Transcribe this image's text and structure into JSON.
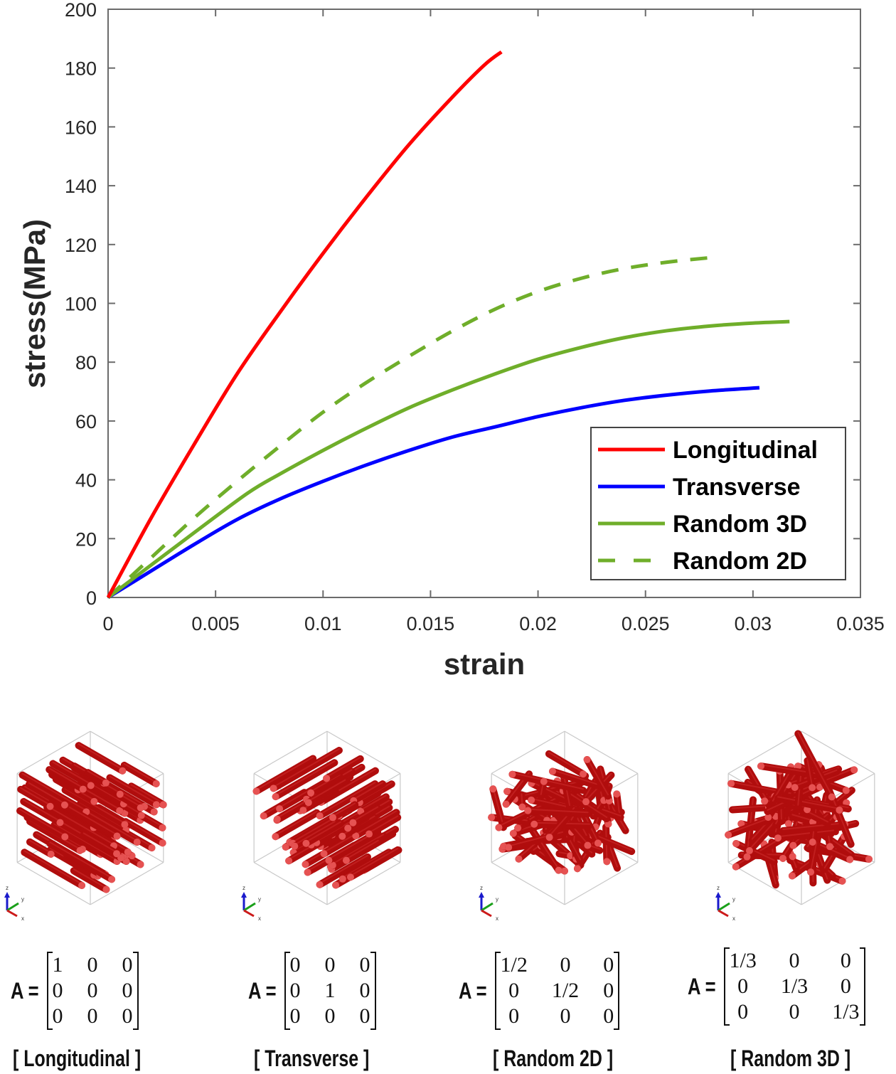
{
  "chart_data": {
    "type": "line",
    "title": "",
    "xlabel": "strain",
    "ylabel": "stress(MPa)",
    "xlim": [
      0,
      0.035
    ],
    "ylim": [
      0,
      200
    ],
    "xticks": [
      0,
      0.005,
      0.01,
      0.015,
      0.02,
      0.025,
      0.03,
      0.035
    ],
    "xtick_labels": [
      "0",
      "0.005",
      "0.01",
      "0.015",
      "0.02",
      "0.025",
      "0.03",
      "0.035"
    ],
    "yticks": [
      0,
      20,
      40,
      60,
      80,
      100,
      120,
      140,
      160,
      180,
      200
    ],
    "ytick_labels": [
      "0",
      "20",
      "40",
      "60",
      "80",
      "100",
      "120",
      "140",
      "160",
      "180",
      "200"
    ],
    "grid": false,
    "legend_position": "bottom-right",
    "series": [
      {
        "name": "Longitudinal",
        "color": "#ff0000",
        "style": "solid",
        "x": [
          0,
          0.002,
          0.004,
          0.006,
          0.008,
          0.01,
          0.012,
          0.014,
          0.016,
          0.0175,
          0.0183
        ],
        "y": [
          0,
          27,
          52,
          76,
          97,
          117,
          136,
          154,
          170,
          181,
          185.5
        ]
      },
      {
        "name": "Transverse",
        "color": "#0000ff",
        "style": "solid",
        "x": [
          0,
          0.002,
          0.004,
          0.006,
          0.008,
          0.01,
          0.012,
          0.014,
          0.016,
          0.018,
          0.02,
          0.022,
          0.024,
          0.026,
          0.028,
          0.0303
        ],
        "y": [
          0,
          9,
          18,
          26.5,
          33.5,
          39.5,
          45,
          50,
          54.5,
          58,
          61.5,
          64.5,
          67,
          68.8,
          70.2,
          71.3
        ]
      },
      {
        "name": "Random 3D",
        "color": "#6fae2a",
        "style": "solid",
        "x": [
          0,
          0.002,
          0.004,
          0.0065,
          0.008,
          0.01,
          0.012,
          0.014,
          0.016,
          0.018,
          0.02,
          0.022,
          0.024,
          0.026,
          0.028,
          0.03,
          0.0317
        ],
        "y": [
          0,
          11,
          22,
          35.5,
          42,
          50,
          57.5,
          64.5,
          70.5,
          76,
          81,
          85,
          88.3,
          90.7,
          92.3,
          93.3,
          93.8
        ]
      },
      {
        "name": "Random 2D",
        "color": "#6fae2a",
        "style": "dashed",
        "x": [
          0,
          0.002,
          0.004,
          0.006,
          0.008,
          0.01,
          0.012,
          0.014,
          0.016,
          0.018,
          0.02,
          0.022,
          0.024,
          0.026,
          0.0281
        ],
        "y": [
          0,
          13.5,
          27,
          39.5,
          51.5,
          63,
          73,
          82,
          90.5,
          98,
          104,
          108.5,
          111.8,
          114,
          115.6
        ]
      }
    ]
  },
  "panels": [
    {
      "caption": "[ Longitudinal ]",
      "matrix_label": "A =",
      "matrix": [
        [
          "1",
          "0",
          "0"
        ],
        [
          "0",
          "0",
          "0"
        ],
        [
          "0",
          "0",
          "0"
        ]
      ],
      "fiber_orientation": "longitudinal",
      "triad_labels": {
        "z": "z",
        "y": "y",
        "x": "x"
      }
    },
    {
      "caption": "[ Transverse ]",
      "matrix_label": "A =",
      "matrix": [
        [
          "0",
          "0",
          "0"
        ],
        [
          "0",
          "1",
          "0"
        ],
        [
          "0",
          "0",
          "0"
        ]
      ],
      "fiber_orientation": "transverse",
      "triad_labels": {
        "z": "z",
        "y": "y",
        "x": "x"
      }
    },
    {
      "caption": "[ Random 2D ]",
      "matrix_label": "A =",
      "matrix": [
        [
          "1/2",
          "0",
          "0"
        ],
        [
          "0",
          "1/2",
          "0"
        ],
        [
          "0",
          "0",
          "0"
        ]
      ],
      "fiber_orientation": "random-2d",
      "triad_labels": {
        "z": "z",
        "y": "y",
        "x": "x"
      }
    },
    {
      "caption": "[ Random 3D ]",
      "matrix_label": "A =",
      "matrix": [
        [
          "1/3",
          "0",
          "0"
        ],
        [
          "0",
          "1/3",
          "0"
        ],
        [
          "0",
          "0",
          "1/3"
        ]
      ],
      "fiber_orientation": "random-3d",
      "triad_labels": {
        "z": "z",
        "y": "y",
        "x": "x"
      }
    }
  ],
  "colors": {
    "fiber": "#b00d0d",
    "fiber_highlight": "#e65252",
    "axis": "#6b6b6b",
    "cube_edge": "#c8c8c8"
  }
}
